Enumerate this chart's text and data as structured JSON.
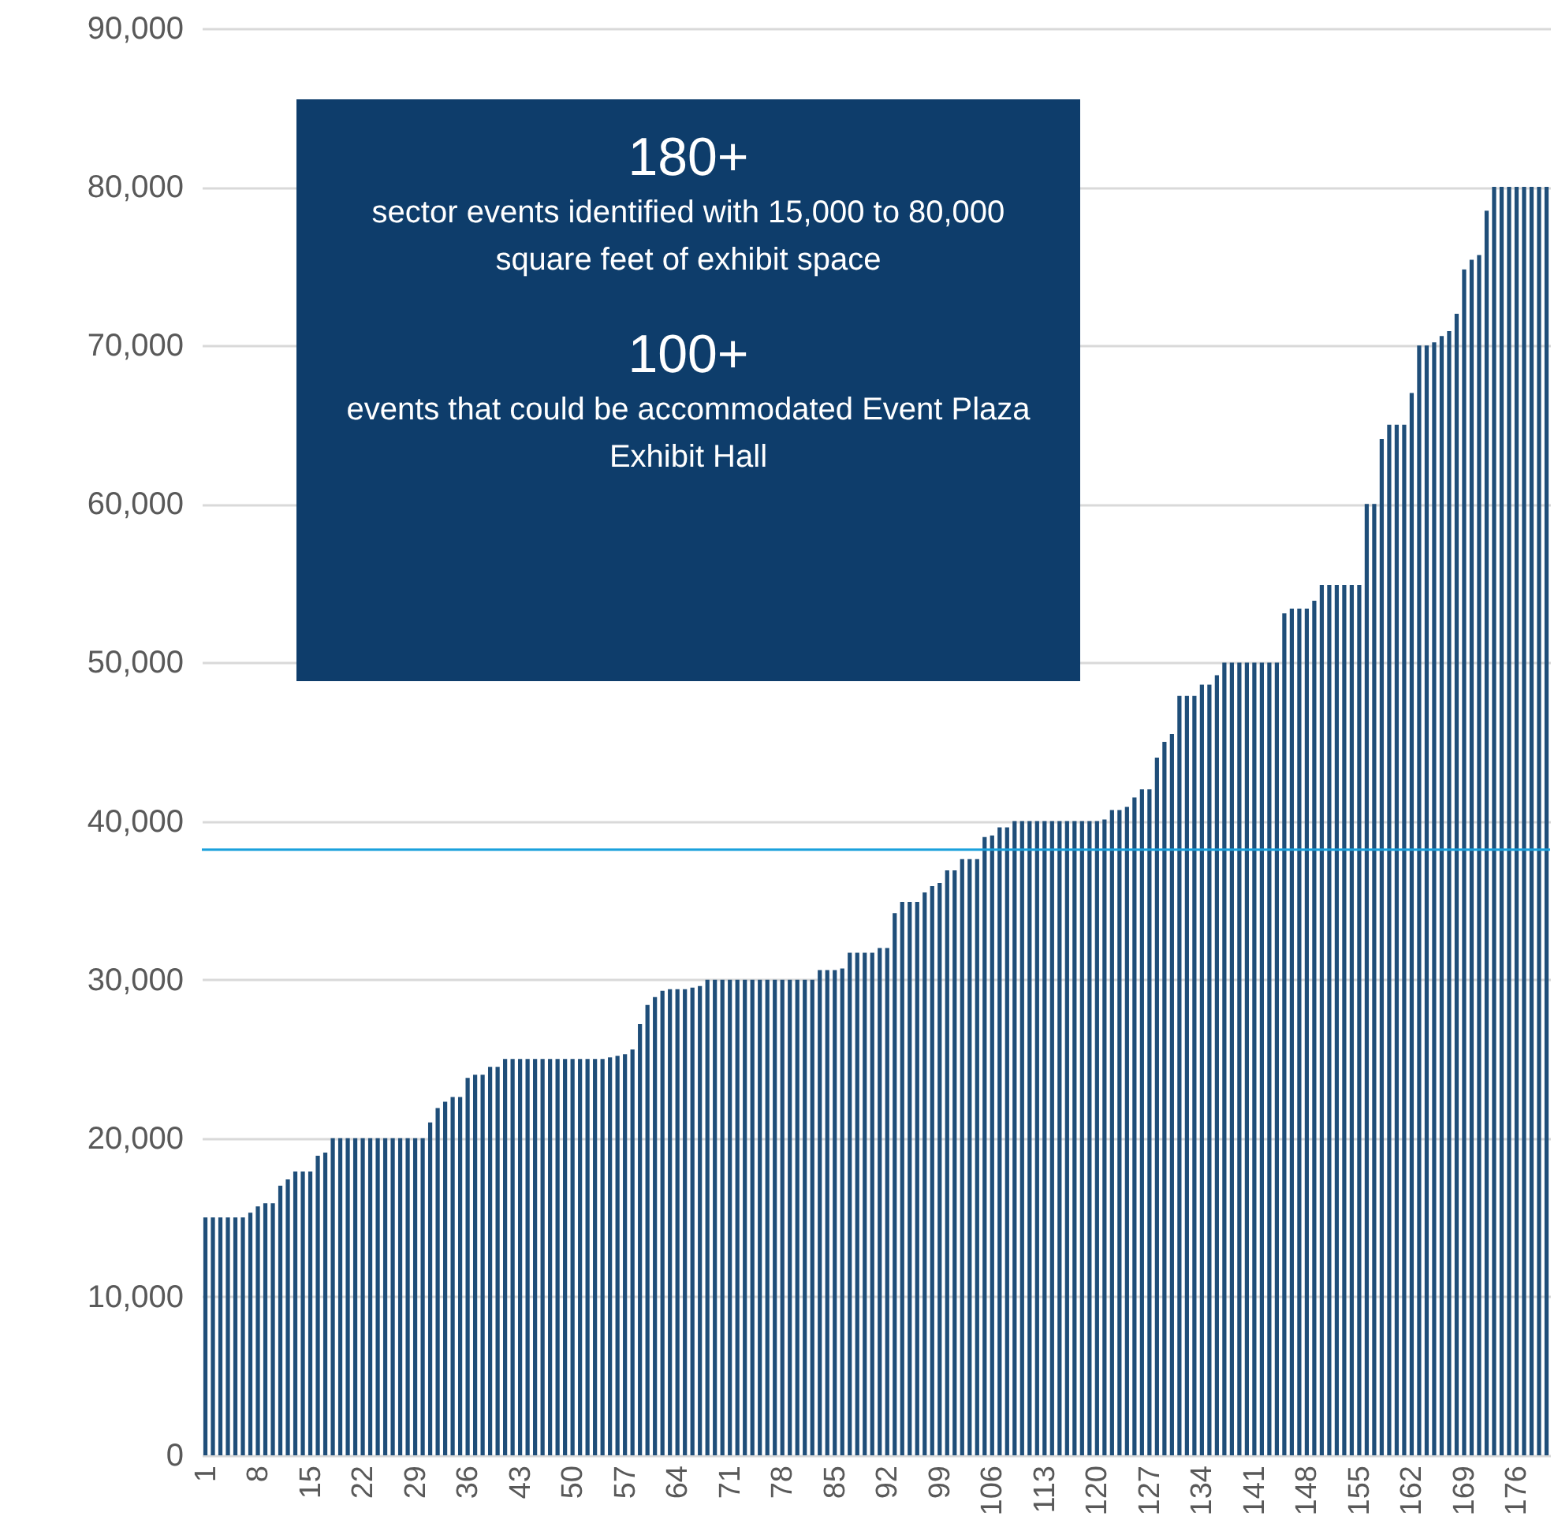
{
  "chart_data": {
    "type": "bar",
    "color": "#1f4e79",
    "categories": [
      "1",
      null,
      null,
      null,
      null,
      null,
      null,
      "8",
      null,
      null,
      null,
      null,
      null,
      null,
      "15",
      null,
      null,
      null,
      null,
      null,
      null,
      "22",
      null,
      null,
      null,
      null,
      null,
      null,
      "29",
      null,
      null,
      null,
      null,
      null,
      null,
      "36",
      null,
      null,
      null,
      null,
      null,
      null,
      "43",
      null,
      null,
      null,
      null,
      null,
      null,
      "50",
      null,
      null,
      null,
      null,
      null,
      null,
      "57",
      null,
      null,
      null,
      null,
      null,
      null,
      "64",
      null,
      null,
      null,
      null,
      null,
      null,
      "71",
      null,
      null,
      null,
      null,
      null,
      null,
      "78",
      null,
      null,
      null,
      null,
      null,
      null,
      "85",
      null,
      null,
      null,
      null,
      null,
      null,
      "92",
      null,
      null,
      null,
      null,
      null,
      null,
      "99",
      null,
      null,
      null,
      null,
      null,
      null,
      "106",
      null,
      null,
      null,
      null,
      null,
      null,
      "113",
      null,
      null,
      null,
      null,
      null,
      null,
      "120",
      null,
      null,
      null,
      null,
      null,
      null,
      "127",
      null,
      null,
      null,
      null,
      null,
      null,
      "134",
      null,
      null,
      null,
      null,
      null,
      null,
      "141",
      null,
      null,
      null,
      null,
      null,
      null,
      "148",
      null,
      null,
      null,
      null,
      null,
      null,
      "155",
      null,
      null,
      null,
      null,
      null,
      null,
      "162",
      null,
      null,
      null,
      null,
      null,
      null,
      "169",
      null,
      null,
      null,
      null,
      null,
      null,
      "176",
      null,
      null,
      null,
      null
    ],
    "values": [
      15000,
      15000,
      15000,
      15000,
      15000,
      15000,
      15300,
      15700,
      15900,
      15900,
      17000,
      17400,
      17900,
      17900,
      17900,
      18900,
      19100,
      20000,
      20000,
      20000,
      20000,
      20000,
      20000,
      20000,
      20000,
      20000,
      20000,
      20000,
      20000,
      20000,
      21000,
      21900,
      22300,
      22600,
      22600,
      23800,
      24000,
      24000,
      24500,
      24500,
      25000,
      25000,
      25000,
      25000,
      25000,
      25000,
      25000,
      25000,
      25000,
      25000,
      25000,
      25000,
      25000,
      25000,
      25100,
      25200,
      25300,
      25600,
      27200,
      28400,
      28900,
      29300,
      29400,
      29400,
      29400,
      29500,
      29600,
      30000,
      30000,
      30000,
      30000,
      30000,
      30000,
      30000,
      30000,
      30000,
      30000,
      30000,
      30000,
      30000,
      30000,
      30000,
      30600,
      30600,
      30600,
      30700,
      31700,
      31700,
      31700,
      31700,
      32000,
      32000,
      34200,
      34900,
      34900,
      34900,
      35500,
      35900,
      36100,
      36900,
      36900,
      37600,
      37600,
      37600,
      39000,
      39100,
      39600,
      39600,
      40000,
      40000,
      40000,
      40000,
      40000,
      40000,
      40000,
      40000,
      40000,
      40000,
      40000,
      40000,
      40100,
      40700,
      40700,
      40900,
      41500,
      42000,
      42000,
      44000,
      45000,
      45500,
      47900,
      47900,
      47900,
      48600,
      48600,
      49200,
      50000,
      50000,
      50000,
      50000,
      50000,
      50000,
      50000,
      50000,
      53100,
      53400,
      53400,
      53400,
      53900,
      54900,
      54900,
      54900,
      54900,
      54900,
      54900,
      60000,
      60000,
      64100,
      65000,
      65000,
      65000,
      67000,
      70000,
      70000,
      70200,
      70600,
      70900,
      72000,
      74800,
      75400,
      75700,
      78500,
      80000,
      80000,
      80000,
      80000,
      80000,
      80000,
      80000,
      80000
    ],
    "ylim": [
      0,
      90000
    ],
    "yticks": [
      {
        "value": 0,
        "label": "0"
      },
      {
        "value": 10000,
        "label": "10,000"
      },
      {
        "value": 20000,
        "label": "20,000"
      },
      {
        "value": 30000,
        "label": "30,000"
      },
      {
        "value": 40000,
        "label": "40,000"
      },
      {
        "value": 50000,
        "label": "50,000"
      },
      {
        "value": 60000,
        "label": "60,000"
      },
      {
        "value": 70000,
        "label": "70,000"
      },
      {
        "value": 80000,
        "label": "80,000"
      },
      {
        "value": 90000,
        "label": "90,000"
      }
    ],
    "grid": "y",
    "ref_lines": [
      {
        "axis": "y",
        "value": 38200,
        "color": "#1ba1dc"
      }
    ],
    "annotations": [
      "180+",
      "sector events identified with 15,000 to 80,000 square feet of exhibit space",
      "100+",
      "events that could be accommodated Event Plaza Exhibit Hall"
    ]
  }
}
